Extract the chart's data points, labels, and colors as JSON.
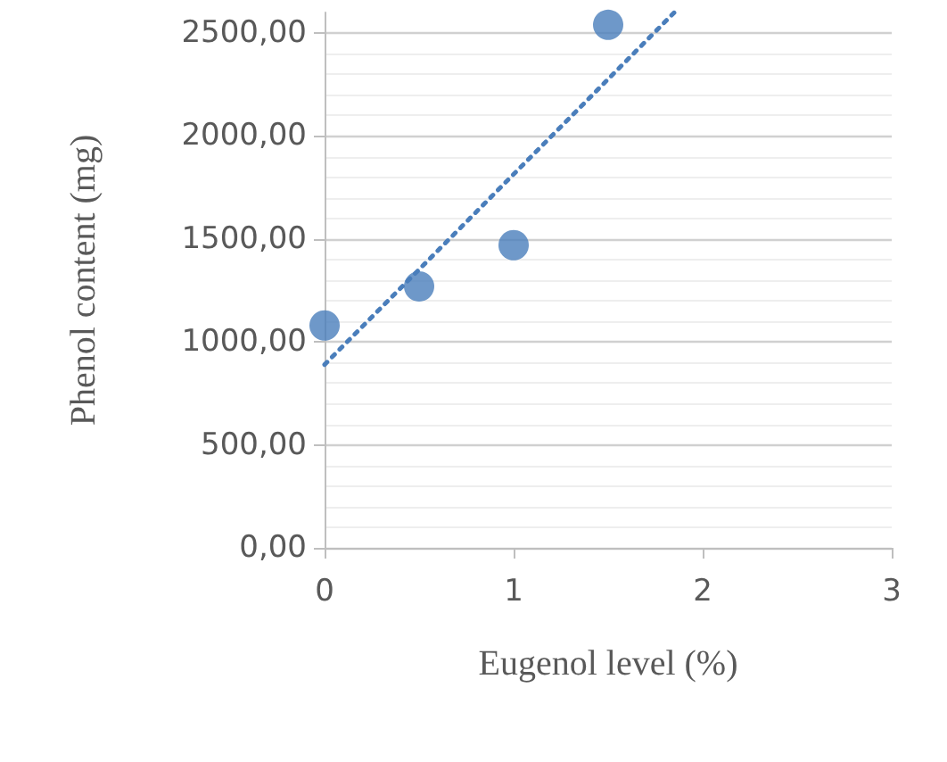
{
  "chart_data": {
    "type": "scatter",
    "xlabel": "Eugenol level (%)",
    "ylabel": "Phenol content (mg)",
    "series": [
      {
        "type": "scatter",
        "color": "#4a7ebb",
        "x": [
          0,
          0.5,
          1,
          1.5
        ],
        "values": [
          1080,
          1270,
          1470,
          2540
        ],
        "marker": "circle"
      },
      {
        "type": "line",
        "color": "#4a7ebb",
        "x": [
          0,
          1.85
        ],
        "values": [
          890,
          2600
        ],
        "line_style": "dotted",
        "marker": "none"
      }
    ],
    "xlim": [
      0,
      3
    ],
    "xticks": [
      0,
      1,
      2,
      3
    ],
    "ylim": [
      0,
      2600
    ],
    "yticks": [
      {
        "value": 0,
        "label": "0,00"
      },
      {
        "value": 500,
        "label": "500,00"
      },
      {
        "value": 1000,
        "label": "1000,00"
      },
      {
        "value": 1500,
        "label": "1500,00"
      },
      {
        "value": 2000,
        "label": "2000,00"
      },
      {
        "value": 2500,
        "label": "2500,00"
      }
    ],
    "grid": "y"
  }
}
